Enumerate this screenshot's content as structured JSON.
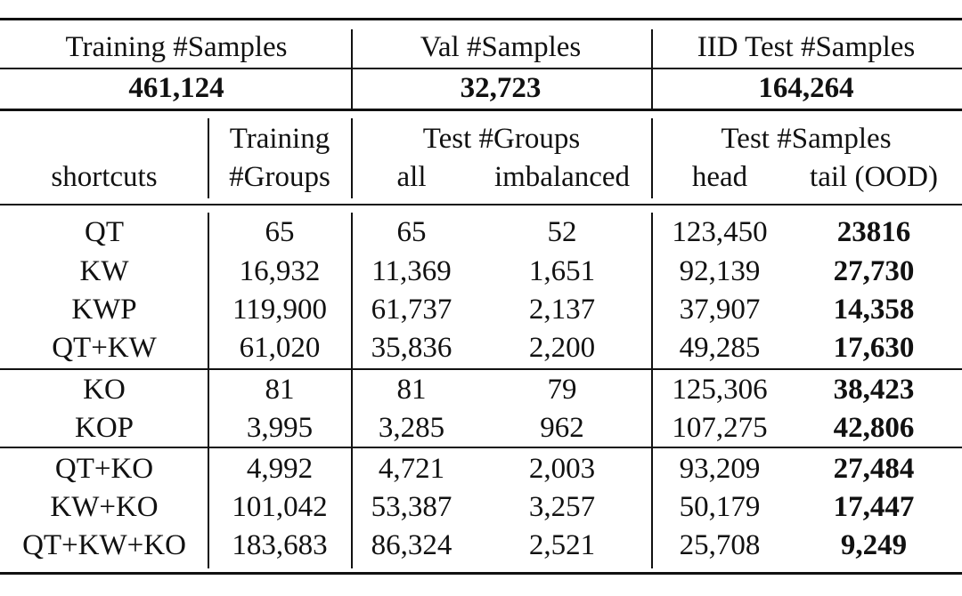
{
  "summary": {
    "headers": [
      "Training #Samples",
      "Val #Samples",
      "IID Test #Samples"
    ],
    "values": [
      "461,124",
      "32,723",
      "164,264"
    ]
  },
  "columns": {
    "shortcuts": "shortcuts",
    "training_groups_line1": "Training",
    "training_groups_line2": "#Groups",
    "test_groups": "Test #Groups",
    "test_groups_all": "all",
    "test_groups_imbalanced": "imbalanced",
    "test_samples": "Test #Samples",
    "test_samples_head": "head",
    "test_samples_tail": "tail (OOD)"
  },
  "rows": [
    [
      "QT",
      "65",
      "65",
      "52",
      "123,450",
      "23816"
    ],
    [
      "KW",
      "16,932",
      "11,369",
      "1,651",
      "92,139",
      "27,730"
    ],
    [
      "KWP",
      "119,900",
      "61,737",
      "2,137",
      "37,907",
      "14,358"
    ],
    [
      "QT+KW",
      "61,020",
      "35,836",
      "2,200",
      "49,285",
      "17,630"
    ],
    [
      "KO",
      "81",
      "81",
      "79",
      "125,306",
      "38,423"
    ],
    [
      "KOP",
      "3,995",
      "3,285",
      "962",
      "107,275",
      "42,806"
    ],
    [
      "QT+KO",
      "4,992",
      "4,721",
      "2,003",
      "93,209",
      "27,484"
    ],
    [
      "KW+KO",
      "101,042",
      "53,387",
      "3,257",
      "50,179",
      "17,447"
    ],
    [
      "QT+KW+KO",
      "183,683",
      "86,324",
      "2,521",
      "25,708",
      "9,249"
    ]
  ]
}
